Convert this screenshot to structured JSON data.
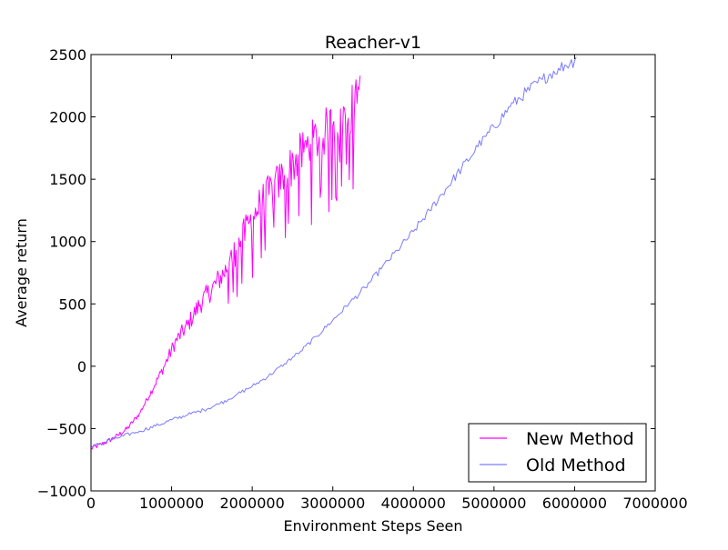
{
  "chart_data": {
    "type": "line",
    "title": "Reacher-v1",
    "xlabel": "Environment Steps Seen",
    "ylabel": "Average return",
    "xlim": [
      0,
      7000000
    ],
    "ylim": [
      -1000,
      2500
    ],
    "xticks": [
      0,
      1000000,
      2000000,
      3000000,
      4000000,
      5000000,
      6000000,
      7000000
    ],
    "xtick_labels": [
      "0",
      "1000000",
      "2000000",
      "3000000",
      "4000000",
      "5000000",
      "6000000",
      "7000000"
    ],
    "yticks": [
      -1000,
      -500,
      0,
      500,
      1000,
      1500,
      2000,
      2500
    ],
    "ytick_labels": [
      "−1000",
      "−500",
      "0",
      "500",
      "1000",
      "1500",
      "2000",
      "2500"
    ],
    "grid": false,
    "legend_position": "bottom-right",
    "series": [
      {
        "name": "New Method",
        "color": "#ff00ff",
        "x": [
          0,
          150000,
          300000,
          450000,
          600000,
          750000,
          900000,
          1050000,
          1200000,
          1350000,
          1500000,
          1650000,
          1800000,
          1950000,
          2100000,
          2250000,
          2400000,
          2550000,
          2700000,
          2850000,
          3000000,
          3150000,
          3300000,
          3340000
        ],
        "values": [
          -660,
          -620,
          -570,
          -500,
          -380,
          -200,
          -10,
          200,
          330,
          500,
          620,
          750,
          930,
          1130,
          1300,
          1420,
          1530,
          1660,
          1770,
          1850,
          1930,
          2010,
          2110,
          2330
        ]
      },
      {
        "name": "Old Method",
        "color": "#7b7bff",
        "x": [
          0,
          200000,
          400000,
          600000,
          800000,
          1000000,
          1200000,
          1400000,
          1600000,
          1800000,
          2000000,
          2200000,
          2400000,
          2600000,
          2800000,
          3000000,
          3200000,
          3400000,
          3600000,
          3800000,
          4000000,
          4200000,
          4400000,
          4600000,
          4800000,
          5000000,
          5200000,
          5400000,
          5600000,
          5800000,
          6000000,
          6020000
        ],
        "values": [
          -650,
          -600,
          -560,
          -520,
          -480,
          -430,
          -390,
          -350,
          -300,
          -230,
          -160,
          -80,
          20,
          120,
          240,
          370,
          500,
          630,
          780,
          930,
          1080,
          1250,
          1420,
          1590,
          1760,
          1920,
          2080,
          2200,
          2300,
          2390,
          2450,
          2480
        ]
      }
    ]
  }
}
